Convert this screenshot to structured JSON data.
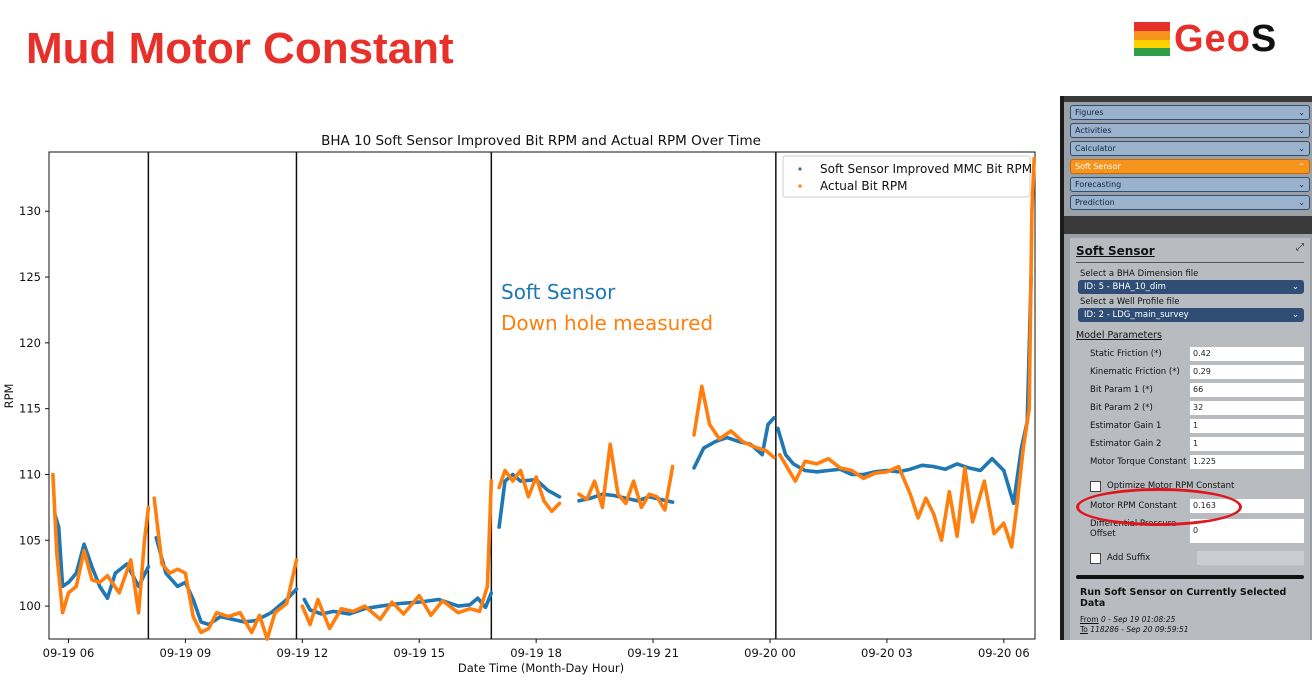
{
  "slide": {
    "title": "Mud Motor Constant",
    "logo_text": "Geo",
    "logo_text_s": "S",
    "logo_colors": [
      "#e8302b",
      "#f7941d",
      "#ffd200",
      "#2e9e48"
    ]
  },
  "annotations": {
    "soft_sensor": "Soft Sensor",
    "downhole": "Down hole measured",
    "soft_sensor_color": "#1f77b4",
    "downhole_color": "#ff7f0e",
    "highlight_color": "#e0161f"
  },
  "chart_data": {
    "type": "line",
    "title": "BHA 10 Soft Sensor Improved Bit RPM and Actual RPM Over Time",
    "xlabel": "Date Time (Month-Day Hour)",
    "ylabel": "RPM",
    "xlim": [
      5.5,
      30.8
    ],
    "ylim": [
      97.5,
      134.5
    ],
    "x_unit": "hours since 09-19 00:00",
    "x_ticks": [
      6,
      9,
      12,
      15,
      18,
      21,
      24,
      27,
      30
    ],
    "x_tick_labels": [
      "09-19 06",
      "09-19 09",
      "09-19 12",
      "09-19 15",
      "09-19 18",
      "09-19 21",
      "09-20 00",
      "09-20 03",
      "09-20 06"
    ],
    "y_ticks": [
      100,
      105,
      110,
      115,
      120,
      125,
      130
    ],
    "y_tick_labels": [
      "100",
      "105",
      "110",
      "115",
      "120",
      "125",
      "130"
    ],
    "vertical_lines": [
      8.05,
      11.85,
      16.85,
      24.15
    ],
    "legend_position": "top-right",
    "grid": false,
    "series": [
      {
        "name": "Soft Sensor Improved MMC Bit RPM",
        "color": "#1f77b4",
        "segments": [
          [
            [
              5.65,
              107
            ],
            [
              5.75,
              106
            ],
            [
              5.85,
              101.5
            ],
            [
              6.0,
              101.8
            ],
            [
              6.2,
              102.5
            ],
            [
              6.4,
              104.7
            ],
            [
              6.6,
              103
            ],
            [
              6.8,
              101.5
            ],
            [
              7.0,
              100.6
            ],
            [
              7.2,
              102.5
            ],
            [
              7.5,
              103.2
            ],
            [
              7.8,
              101.5
            ],
            [
              8.05,
              103
            ]
          ],
          [
            [
              8.25,
              105.2
            ],
            [
              8.5,
              102.5
            ],
            [
              8.8,
              101.5
            ],
            [
              9.0,
              101.8
            ],
            [
              9.2,
              100.5
            ],
            [
              9.4,
              98.8
            ],
            [
              9.6,
              98.6
            ],
            [
              9.9,
              99.2
            ],
            [
              10.2,
              99
            ],
            [
              10.5,
              98.8
            ],
            [
              10.8,
              98.9
            ],
            [
              11.2,
              99.5
            ],
            [
              11.6,
              100.5
            ],
            [
              11.85,
              101.3
            ]
          ],
          [
            [
              12.05,
              100.5
            ],
            [
              12.2,
              99.7
            ],
            [
              12.5,
              99.4
            ],
            [
              12.8,
              99.6
            ],
            [
              13.2,
              99.4
            ],
            [
              13.6,
              99.8
            ],
            [
              14.0,
              100
            ],
            [
              14.5,
              100.2
            ],
            [
              15.0,
              100.3
            ],
            [
              15.5,
              100.5
            ],
            [
              16.0,
              100
            ],
            [
              16.3,
              100.1
            ],
            [
              16.5,
              100.6
            ],
            [
              16.7,
              99.9
            ],
            [
              16.85,
              101
            ]
          ],
          [
            [
              17.05,
              106
            ],
            [
              17.2,
              109.5
            ],
            [
              17.4,
              110
            ],
            [
              17.6,
              109.5
            ],
            [
              18.0,
              109.6
            ],
            [
              18.3,
              108.8
            ],
            [
              18.6,
              108.3
            ]
          ],
          [
            [
              19.1,
              108
            ],
            [
              19.4,
              108.2
            ],
            [
              19.7,
              108.5
            ],
            [
              20.0,
              108.4
            ],
            [
              20.3,
              108.2
            ],
            [
              20.6,
              108
            ],
            [
              20.9,
              108.3
            ],
            [
              21.2,
              108.1
            ],
            [
              21.5,
              107.9
            ]
          ],
          [
            [
              22.05,
              110.5
            ],
            [
              22.3,
              112
            ],
            [
              22.6,
              112.5
            ],
            [
              22.9,
              112.8
            ],
            [
              23.2,
              112.5
            ],
            [
              23.5,
              112.3
            ],
            [
              23.8,
              111.5
            ],
            [
              23.95,
              113.8
            ],
            [
              24.1,
              114.3
            ]
          ],
          [
            [
              24.2,
              113.5
            ],
            [
              24.4,
              111.5
            ],
            [
              24.6,
              110.8
            ],
            [
              24.9,
              110.3
            ],
            [
              25.2,
              110.2
            ],
            [
              25.5,
              110.3
            ],
            [
              25.8,
              110.4
            ],
            [
              26.1,
              110
            ],
            [
              26.4,
              110
            ],
            [
              26.7,
              110.2
            ],
            [
              27.0,
              110.3
            ],
            [
              27.3,
              110.2
            ],
            [
              27.6,
              110.4
            ],
            [
              27.9,
              110.7
            ],
            [
              28.2,
              110.6
            ],
            [
              28.5,
              110.4
            ],
            [
              28.8,
              110.8
            ],
            [
              29.1,
              110.5
            ],
            [
              29.4,
              110.3
            ],
            [
              29.7,
              111.2
            ],
            [
              30.0,
              110.3
            ],
            [
              30.25,
              107.8
            ],
            [
              30.45,
              112
            ],
            [
              30.6,
              114
            ],
            [
              30.7,
              125
            ]
          ]
        ]
      },
      {
        "name": "Actual Bit RPM",
        "color": "#ff7f0e",
        "segments": [
          [
            [
              5.6,
              110
            ],
            [
              5.7,
              104
            ],
            [
              5.85,
              99.5
            ],
            [
              6.0,
              101
            ],
            [
              6.2,
              101.5
            ],
            [
              6.4,
              104.2
            ],
            [
              6.6,
              102
            ],
            [
              6.8,
              101.8
            ],
            [
              7.0,
              102.3
            ],
            [
              7.3,
              101
            ],
            [
              7.6,
              103.5
            ],
            [
              7.8,
              99.5
            ],
            [
              7.95,
              105
            ],
            [
              8.05,
              107.5
            ]
          ],
          [
            [
              8.2,
              108.2
            ],
            [
              8.4,
              103.2
            ],
            [
              8.6,
              102.5
            ],
            [
              8.8,
              102.8
            ],
            [
              9.0,
              102.5
            ],
            [
              9.2,
              99.2
            ],
            [
              9.4,
              98
            ],
            [
              9.6,
              98.3
            ],
            [
              9.8,
              99.5
            ],
            [
              10.1,
              99.2
            ],
            [
              10.4,
              99.5
            ],
            [
              10.7,
              98
            ],
            [
              10.9,
              99.3
            ],
            [
              11.1,
              97.5
            ],
            [
              11.3,
              99.5
            ],
            [
              11.6,
              100.2
            ],
            [
              11.85,
              103.5
            ]
          ],
          [
            [
              12.0,
              100
            ],
            [
              12.2,
              98.6
            ],
            [
              12.4,
              100.5
            ],
            [
              12.7,
              98.3
            ],
            [
              13.0,
              99.8
            ],
            [
              13.3,
              99.6
            ],
            [
              13.6,
              100
            ],
            [
              14.0,
              99
            ],
            [
              14.3,
              100.3
            ],
            [
              14.6,
              99.4
            ],
            [
              15.0,
              100.8
            ],
            [
              15.3,
              99.3
            ],
            [
              15.6,
              100.4
            ],
            [
              16.0,
              99.5
            ],
            [
              16.3,
              99.8
            ],
            [
              16.55,
              99.6
            ],
            [
              16.75,
              101.5
            ],
            [
              16.85,
              109.5
            ]
          ],
          [
            [
              17.05,
              109
            ],
            [
              17.2,
              110.3
            ],
            [
              17.4,
              109.5
            ],
            [
              17.6,
              110.3
            ],
            [
              17.8,
              108.3
            ],
            [
              18.0,
              109.8
            ],
            [
              18.2,
              108
            ],
            [
              18.4,
              107.2
            ],
            [
              18.6,
              107.8
            ]
          ],
          [
            [
              19.1,
              108.5
            ],
            [
              19.3,
              108.1
            ],
            [
              19.5,
              109.5
            ],
            [
              19.7,
              107.5
            ],
            [
              19.9,
              112.3
            ],
            [
              20.1,
              108.5
            ],
            [
              20.3,
              107.8
            ],
            [
              20.5,
              109.5
            ],
            [
              20.7,
              107.5
            ],
            [
              20.9,
              108.5
            ],
            [
              21.1,
              108.3
            ],
            [
              21.3,
              107.3
            ],
            [
              21.5,
              110.6
            ]
          ],
          [
            [
              22.05,
              113
            ],
            [
              22.25,
              116.7
            ],
            [
              22.45,
              113.8
            ],
            [
              22.7,
              112.7
            ],
            [
              23.0,
              113.3
            ],
            [
              23.3,
              112.5
            ],
            [
              23.6,
              112.1
            ],
            [
              23.9,
              111.8
            ],
            [
              24.1,
              111.3
            ]
          ],
          [
            [
              24.25,
              111.5
            ],
            [
              24.45,
              110.5
            ],
            [
              24.65,
              109.5
            ],
            [
              24.9,
              111
            ],
            [
              25.2,
              110.8
            ],
            [
              25.5,
              111.2
            ],
            [
              25.8,
              110.5
            ],
            [
              26.1,
              110.3
            ],
            [
              26.4,
              109.7
            ],
            [
              26.7,
              110.1
            ],
            [
              27.0,
              110.2
            ],
            [
              27.3,
              110.6
            ],
            [
              27.6,
              108.5
            ],
            [
              27.8,
              106.7
            ],
            [
              28.0,
              108.2
            ],
            [
              28.2,
              107
            ],
            [
              28.4,
              105
            ],
            [
              28.6,
              108.7
            ],
            [
              28.8,
              105.3
            ],
            [
              29.0,
              110.5
            ],
            [
              29.2,
              106.4
            ],
            [
              29.5,
              109.5
            ],
            [
              29.75,
              105.5
            ],
            [
              30.0,
              106.3
            ],
            [
              30.2,
              104.5
            ],
            [
              30.35,
              108
            ],
            [
              30.5,
              112
            ],
            [
              30.65,
              115
            ],
            [
              30.72,
              130
            ],
            [
              30.78,
              134
            ]
          ]
        ]
      }
    ]
  },
  "panel": {
    "accordions": [
      {
        "label": "Figures"
      },
      {
        "label": "Activities"
      },
      {
        "label": "Calculator"
      },
      {
        "label": "Soft Sensor"
      },
      {
        "label": "Forecasting"
      },
      {
        "label": "Prediction"
      }
    ],
    "section_title": "Soft Sensor",
    "bha_label": "Select a BHA Dimension file",
    "bha_value": "ID: 5 - BHA_10_dim",
    "well_label": "Select a Well Profile file",
    "well_value": "ID: 2 - LDG_main_survey",
    "model_params": "Model Parameters",
    "params": [
      {
        "label": "Static Friction (*)",
        "value": "0.42"
      },
      {
        "label": "Kinematic Friction (*)",
        "value": "0.29"
      },
      {
        "label": "Bit Param 1 (*)",
        "value": "66"
      },
      {
        "label": "Bit Param 2 (*)",
        "value": "32"
      },
      {
        "label": "Estimator Gain 1",
        "value": "1"
      },
      {
        "label": "Estimator Gain 2",
        "value": "1"
      },
      {
        "label": "Motor Torque Constant",
        "value": "1.225"
      }
    ],
    "optimize_label": "Optimize Motor RPM Constant",
    "motor_rpm_label": "Motor RPM Constant",
    "motor_rpm_value": "0.163",
    "diff_pressure_label": "Differential Pressure Offset",
    "diff_pressure_value": "0",
    "add_suffix_label": "Add Suffix",
    "run_title": "Run Soft Sensor on Currently Selected Data",
    "from_label": "From",
    "from_value": "0 - Sep 19 01:08:25",
    "to_label": "To",
    "to_value": "118286 - Sep 20 09:59:51"
  }
}
